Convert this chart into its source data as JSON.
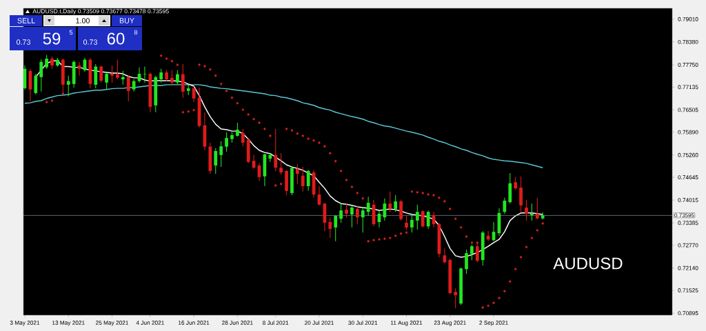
{
  "chart_data": {
    "type": "candlestick",
    "title": "AUDUSD.t,Daily 0.73509 0.73677 0.73478 0.73595",
    "categories": [
      "3 May 2021",
      null,
      null,
      null,
      null,
      null,
      null,
      null,
      "13 May 2021",
      null,
      null,
      null,
      null,
      null,
      null,
      null,
      "25 May 2021",
      null,
      null,
      null,
      null,
      null,
      null,
      "4 Jun 2021",
      null,
      null,
      null,
      null,
      null,
      null,
      null,
      "16 Jun 2021",
      null,
      null,
      null,
      null,
      null,
      null,
      null,
      "28 Jun 2021",
      null,
      null,
      null,
      null,
      null,
      null,
      "8 Jul 2021",
      null,
      null,
      null,
      null,
      null,
      null,
      null,
      "20 Jul 2021",
      null,
      null,
      null,
      null,
      null,
      null,
      null,
      "30 Jul 2021",
      null,
      null,
      null,
      null,
      null,
      null,
      null,
      "11 Aug 2021",
      null,
      null,
      null,
      null,
      null,
      null,
      null,
      "23 Aug 2021",
      null,
      null,
      null,
      null,
      null,
      null,
      null,
      "2 Sep 2021",
      null,
      null,
      null,
      null,
      null,
      null,
      null,
      null,
      null
    ],
    "ohlc": [
      [
        0.771,
        0.7773,
        0.7707,
        0.7764
      ],
      [
        0.7758,
        0.7764,
        0.7674,
        0.7707
      ],
      [
        0.7697,
        0.775,
        0.7693,
        0.7745
      ],
      [
        0.7741,
        0.779,
        0.7701,
        0.7783
      ],
      [
        0.7768,
        0.7802,
        0.7764,
        0.7792
      ],
      [
        0.7792,
        0.7798,
        0.7764,
        0.7773
      ],
      [
        0.7773,
        0.7794,
        0.777,
        0.7789
      ],
      [
        0.7789,
        0.7792,
        0.7693,
        0.772
      ],
      [
        0.772,
        0.7745,
        0.7688,
        0.773
      ],
      [
        0.7722,
        0.7787,
        0.7712,
        0.7783
      ],
      [
        0.7773,
        0.7783,
        0.7745,
        0.7764
      ],
      [
        0.776,
        0.7794,
        0.7756,
        0.7789
      ],
      [
        0.7789,
        0.7794,
        0.771,
        0.7722
      ],
      [
        0.772,
        0.7777,
        0.771,
        0.777
      ],
      [
        0.777,
        0.7773,
        0.7726,
        0.7731
      ],
      [
        0.7726,
        0.7754,
        0.7707,
        0.775
      ],
      [
        0.775,
        0.7773,
        0.7726,
        0.7745
      ],
      [
        0.7749,
        0.7789,
        0.7735,
        0.7739
      ],
      [
        0.7735,
        0.7758,
        0.772,
        0.7741
      ],
      [
        0.7741,
        0.7745,
        0.7674,
        0.7703
      ],
      [
        0.7707,
        0.7735,
        0.7701,
        0.773
      ],
      [
        0.773,
        0.7768,
        0.7726,
        0.775
      ],
      [
        0.7749,
        0.777,
        0.7726,
        0.775
      ],
      [
        0.775,
        0.7754,
        0.7644,
        0.7659
      ],
      [
        0.7663,
        0.7745,
        0.7644,
        0.7741
      ],
      [
        0.7735,
        0.7764,
        0.7726,
        0.7754
      ],
      [
        0.7754,
        0.776,
        0.773,
        0.7735
      ],
      [
        0.7739,
        0.776,
        0.7722,
        0.7726
      ],
      [
        0.7726,
        0.776,
        0.772,
        0.7749
      ],
      [
        0.7749,
        0.7777,
        0.7684,
        0.7701
      ],
      [
        0.7703,
        0.772,
        0.7691,
        0.771
      ],
      [
        0.771,
        0.7716,
        0.7672,
        0.7682
      ],
      [
        0.7684,
        0.7712,
        0.7602,
        0.7606
      ],
      [
        0.7608,
        0.7644,
        0.7539,
        0.7549
      ],
      [
        0.7549,
        0.756,
        0.7474,
        0.7482
      ],
      [
        0.7497,
        0.7545,
        0.7474,
        0.7537
      ],
      [
        0.7526,
        0.7564,
        0.7493,
        0.755
      ],
      [
        0.7549,
        0.7589,
        0.7535,
        0.7573
      ],
      [
        0.757,
        0.7589,
        0.756,
        0.7581
      ],
      [
        0.7579,
        0.7615,
        0.7577,
        0.7596
      ],
      [
        0.7587,
        0.7598,
        0.755,
        0.756
      ],
      [
        0.7568,
        0.7573,
        0.7503,
        0.7507
      ],
      [
        0.751,
        0.7526,
        0.7488,
        0.7491
      ],
      [
        0.7497,
        0.7503,
        0.7455,
        0.7465
      ],
      [
        0.7467,
        0.753,
        0.744,
        0.7528
      ],
      [
        0.7516,
        0.753,
        0.7507,
        0.7526
      ],
      [
        0.7526,
        0.7598,
        0.7482,
        0.7491
      ],
      [
        0.7491,
        0.7531,
        0.7472,
        0.7478
      ],
      [
        0.7482,
        0.7484,
        0.7415,
        0.7427
      ],
      [
        0.7421,
        0.7493,
        0.7415,
        0.7491
      ],
      [
        0.7488,
        0.7501,
        0.7446,
        0.7474
      ],
      [
        0.7469,
        0.7493,
        0.7425,
        0.744
      ],
      [
        0.744,
        0.7484,
        0.7427,
        0.7482
      ],
      [
        0.7478,
        0.7484,
        0.7408,
        0.7417
      ],
      [
        0.7417,
        0.744,
        0.7387,
        0.7389
      ],
      [
        0.7392,
        0.7392,
        0.7316,
        0.7339
      ],
      [
        0.7341,
        0.7354,
        0.7297,
        0.7322
      ],
      [
        0.7326,
        0.736,
        0.7288,
        0.7358
      ],
      [
        0.735,
        0.7392,
        0.7339,
        0.7373
      ],
      [
        0.7375,
        0.7392,
        0.7354,
        0.7364
      ],
      [
        0.7362,
        0.7387,
        0.7326,
        0.7381
      ],
      [
        0.7377,
        0.7387,
        0.7335,
        0.7354
      ],
      [
        0.7354,
        0.7383,
        0.7312,
        0.7373
      ],
      [
        0.7369,
        0.7411,
        0.7358,
        0.7394
      ],
      [
        0.7389,
        0.7402,
        0.7329,
        0.7335
      ],
      [
        0.7341,
        0.7373,
        0.7326,
        0.7364
      ],
      [
        0.7354,
        0.7406,
        0.7345,
        0.7392
      ],
      [
        0.7392,
        0.7425,
        0.7368,
        0.7377
      ],
      [
        0.7377,
        0.7415,
        0.7369,
        0.7398
      ],
      [
        0.7398,
        0.7402,
        0.7345,
        0.7349
      ],
      [
        0.7339,
        0.736,
        0.732,
        0.7326
      ],
      [
        0.7326,
        0.736,
        0.7312,
        0.7347
      ],
      [
        0.7345,
        0.7389,
        0.732,
        0.7369
      ],
      [
        0.7371,
        0.7373,
        0.7326,
        0.7329
      ],
      [
        0.7329,
        0.7373,
        0.7322,
        0.7369
      ],
      [
        0.736,
        0.7369,
        0.7326,
        0.7335
      ],
      [
        0.7335,
        0.7339,
        0.7244,
        0.7253
      ],
      [
        0.7249,
        0.7268,
        0.7227,
        0.723
      ],
      [
        0.7236,
        0.724,
        0.7141,
        0.7145
      ],
      [
        0.7148,
        0.7158,
        0.7103,
        0.7139
      ],
      [
        0.7116,
        0.7215,
        0.7112,
        0.7213
      ],
      [
        0.7211,
        0.7265,
        0.7198,
        0.7255
      ],
      [
        0.7253,
        0.7278,
        0.7236,
        0.7274
      ],
      [
        0.7274,
        0.7286,
        0.723,
        0.7234
      ],
      [
        0.7236,
        0.7316,
        0.7221,
        0.7312
      ],
      [
        0.7303,
        0.7316,
        0.7288,
        0.7293
      ],
      [
        0.7291,
        0.7341,
        0.7288,
        0.7314
      ],
      [
        0.731,
        0.7379,
        0.7303,
        0.7366
      ],
      [
        0.7369,
        0.7408,
        0.7364,
        0.74
      ],
      [
        0.7396,
        0.7476,
        0.7392,
        0.7448
      ],
      [
        0.7451,
        0.7465,
        0.743,
        0.7434
      ],
      [
        0.7436,
        0.7467,
        0.7369,
        0.7387
      ],
      [
        0.7381,
        0.7402,
        0.7345,
        0.7364
      ],
      [
        0.736,
        0.7392,
        0.7345,
        0.7364
      ],
      [
        0.7364,
        0.7408,
        0.7349,
        0.7351
      ],
      [
        0.73509,
        0.73677,
        0.73478,
        0.73595
      ]
    ],
    "colors": [
      "#22e622",
      "#e01b1b",
      "#22e622",
      "#22e622",
      "#22e622",
      "#e01b1b",
      "#22e622",
      "#e01b1b",
      "#22e622",
      "#22e622",
      "#e01b1b",
      "#22e622",
      "#e01b1b",
      "#22e622",
      "#e01b1b",
      "#22e622",
      "#e01b1b",
      "#e01b1b",
      "#22e622",
      "#e01b1b",
      "#22e622",
      "#22e622",
      "#22e622",
      "#e01b1b",
      "#22e622",
      "#22e622",
      "#e01b1b",
      "#e01b1b",
      "#22e622",
      "#e01b1b",
      "#22e622",
      "#e01b1b",
      "#e01b1b",
      "#e01b1b",
      "#e01b1b",
      "#22e622",
      "#22e622",
      "#22e622",
      "#22e622",
      "#22e622",
      "#e01b1b",
      "#e01b1b",
      "#e01b1b",
      "#e01b1b",
      "#22e622",
      "#22e622",
      "#e01b1b",
      "#e01b1b",
      "#e01b1b",
      "#22e622",
      "#e01b1b",
      "#e01b1b",
      "#22e622",
      "#e01b1b",
      "#e01b1b",
      "#e01b1b",
      "#e01b1b",
      "#22e622",
      "#22e622",
      "#e01b1b",
      "#22e622",
      "#e01b1b",
      "#22e622",
      "#22e622",
      "#e01b1b",
      "#22e622",
      "#22e622",
      "#e01b1b",
      "#22e622",
      "#e01b1b",
      "#e01b1b",
      "#22e622",
      "#22e622",
      "#e01b1b",
      "#22e622",
      "#e01b1b",
      "#e01b1b",
      "#e01b1b",
      "#e01b1b",
      "#e01b1b",
      "#22e622",
      "#22e622",
      "#22e622",
      "#e01b1b",
      "#22e622",
      "#e01b1b",
      "#22e622",
      "#22e622",
      "#22e622",
      "#22e622",
      "#e01b1b",
      "#e01b1b",
      "#e01b1b",
      "#22e622",
      "#e01b1b",
      "#22e622"
    ],
    "series": [
      {
        "type": "line",
        "color": "#5cc8d6",
        "values": [
          0.7669,
          0.767,
          0.7674,
          0.7676,
          0.7682,
          0.7686,
          0.769,
          0.7691,
          0.7693,
          0.7697,
          0.7699,
          0.7701,
          0.7703,
          0.7705,
          0.7705,
          0.7707,
          0.7709,
          0.771,
          0.771,
          0.7712,
          0.7712,
          0.7714,
          0.7716,
          0.7718,
          0.7718,
          0.7718,
          0.772,
          0.772,
          0.772,
          0.772,
          0.772,
          0.772,
          0.772,
          0.7718,
          0.7714,
          0.7712,
          0.771,
          0.7709,
          0.7707,
          0.7705,
          0.7703,
          0.7701,
          0.7699,
          0.7697,
          0.7695,
          0.7691,
          0.769,
          0.7686,
          0.7684,
          0.768,
          0.7676,
          0.767,
          0.7667,
          0.7663,
          0.7657,
          0.7653,
          0.765,
          0.7644,
          0.764,
          0.7636,
          0.7632,
          0.7629,
          0.7625,
          0.7619,
          0.7615,
          0.761,
          0.7606,
          0.7604,
          0.76,
          0.7596,
          0.7592,
          0.7589,
          0.7585,
          0.7581,
          0.7575,
          0.757,
          0.7564,
          0.756,
          0.7554,
          0.7549,
          0.7543,
          0.7539,
          0.7533,
          0.7528,
          0.7524,
          0.7518,
          0.7514,
          0.7512,
          0.751,
          0.7509,
          0.7507,
          0.7505,
          0.7503,
          0.7499,
          0.7495,
          0.7491
        ]
      },
      {
        "type": "line",
        "color": "#ffffff",
        "values": [
          null,
          null,
          0.7741,
          0.776,
          0.7779,
          0.7785,
          0.7787,
          0.777,
          0.777,
          0.7768,
          0.7768,
          0.7764,
          0.776,
          0.7758,
          0.7756,
          0.7754,
          0.7752,
          0.7752,
          0.775,
          0.7743,
          0.7739,
          0.7739,
          0.7733,
          0.773,
          0.7731,
          0.7731,
          0.7731,
          0.7731,
          0.773,
          0.7728,
          0.7722,
          0.7716,
          0.769,
          0.7659,
          0.7632,
          0.7611,
          0.7598,
          0.7596,
          0.7592,
          0.7592,
          0.7585,
          0.757,
          0.7552,
          0.7539,
          0.7533,
          0.753,
          0.752,
          0.751,
          0.7499,
          0.7493,
          0.7489,
          0.7484,
          0.7476,
          0.7469,
          0.7451,
          0.7434,
          0.7413,
          0.74,
          0.7392,
          0.739,
          0.7387,
          0.7383,
          0.7381,
          0.7379,
          0.7377,
          0.7373,
          0.7375,
          0.7377,
          0.7375,
          0.7371,
          0.7366,
          0.7362,
          0.736,
          0.7358,
          0.7354,
          0.7349,
          0.7331,
          0.7301,
          0.7268,
          0.7248,
          0.7244,
          0.7246,
          0.7251,
          0.7257,
          0.7265,
          0.7274,
          0.7284,
          0.7293,
          0.7314,
          0.7345,
          0.7358,
          0.7366,
          0.7366,
          0.7366,
          0.7364,
          0.7362
        ]
      },
      {
        "type": "scatter",
        "marker": "circle",
        "color": "#d02020",
        "values": [
          null,
          null,
          null,
          null,
          0.7672,
          0.7676,
          null,
          0.7695,
          null,
          null,
          null,
          null,
          null,
          null,
          null,
          null,
          null,
          null,
          null,
          null,
          null,
          null,
          null,
          null,
          null,
          0.78,
          0.7792,
          0.7785,
          0.7775,
          0.7644,
          0.7646,
          0.765,
          0.7775,
          0.7771,
          0.7762,
          0.7745,
          0.7722,
          0.7703,
          0.7684,
          0.7669,
          0.7651,
          0.7638,
          0.7625,
          0.7615,
          0.7598,
          0.7579,
          0.7442,
          0.7446,
          0.7598,
          0.7594,
          0.7585,
          0.7579,
          0.7571,
          0.7566,
          0.756,
          0.755,
          0.7531,
          0.7509,
          0.7482,
          0.7457,
          0.7438,
          0.7421,
          0.7406,
          0.7288,
          0.7291,
          0.7293,
          0.7295,
          0.7297,
          0.7303,
          0.7309,
          0.7312,
          0.7425,
          0.7423,
          0.7421,
          0.7417,
          0.7415,
          0.7408,
          0.7398,
          0.7377,
          0.735,
          0.7326,
          0.7301,
          0.7284,
          0.7284,
          0.7105,
          0.711,
          0.7118,
          0.7131,
          0.715,
          0.7177,
          0.7211,
          0.7244,
          0.7272,
          0.7297,
          0.7318,
          0.7337
        ]
      }
    ],
    "ylim": [
      0.7084,
      0.7931
    ],
    "yticks": [
      {
        "value": 0.7901,
        "label": "0.79010"
      },
      {
        "value": 0.7838,
        "label": "0.78380"
      },
      {
        "value": 0.7775,
        "label": "0.77750"
      },
      {
        "value": 0.77135,
        "label": "0.77135"
      },
      {
        "value": 0.76505,
        "label": "0.76505"
      },
      {
        "value": 0.7589,
        "label": "0.75890"
      },
      {
        "value": 0.7526,
        "label": "0.75260"
      },
      {
        "value": 0.74645,
        "label": "0.74645"
      },
      {
        "value": 0.74015,
        "label": "0.74015"
      },
      {
        "value": 0.73385,
        "label": "0.73385"
      },
      {
        "value": 0.7277,
        "label": "0.72770"
      },
      {
        "value": 0.7214,
        "label": "0.72140"
      },
      {
        "value": 0.71525,
        "label": "0.71525"
      },
      {
        "value": 0.70895,
        "label": "0.70895"
      }
    ],
    "ref_lines": [
      {
        "axis": "y",
        "value": 0.73595,
        "label": "0.73595",
        "color": "#8898a8"
      }
    ],
    "annotations": [
      "SELL",
      "1.00",
      "BUY",
      "0.73",
      "59",
      "5",
      "0.73",
      "60",
      "8",
      "AUDUSD"
    ]
  }
}
